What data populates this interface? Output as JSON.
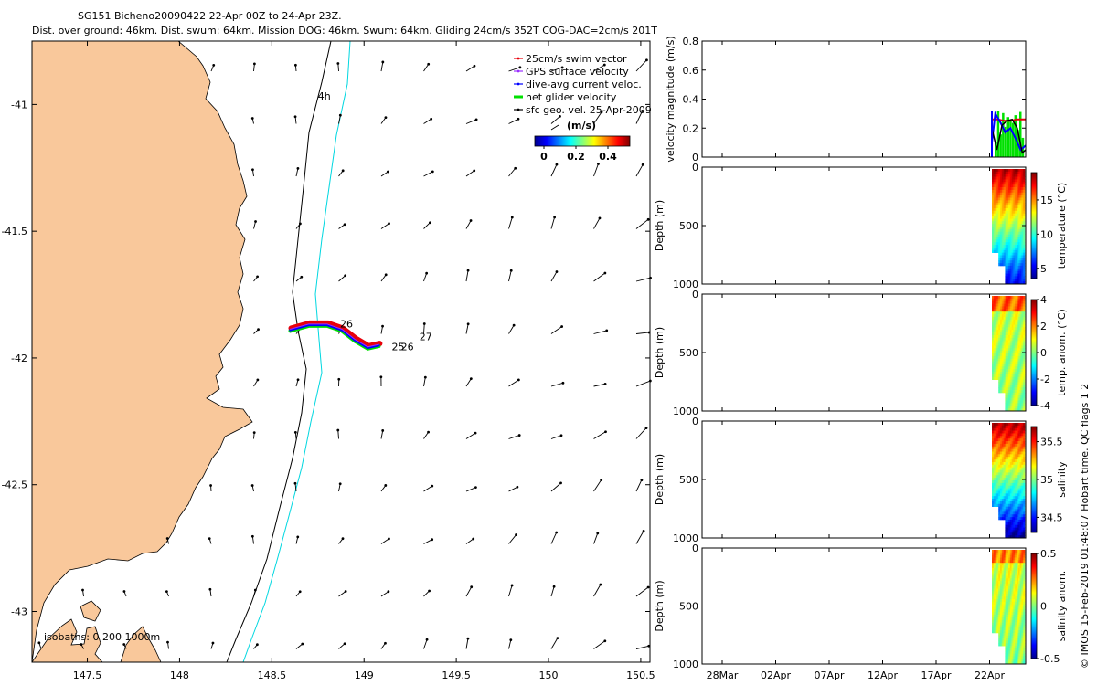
{
  "header": {
    "title_line1": "SG151 Bicheno20090422 22-Apr 00Z to 24-Apr 23Z.",
    "title_line2": "Dist. over ground: 46km. Dist. swum: 64km. Mission DOG: 46km. Swum: 64km. Gliding 24cm/s 352T COG-DAC=2cm/s 201T"
  },
  "credit": "© IMOS 15-Feb-2019 01:48:07 Hobart time. QC flags 1  2",
  "colors": {
    "land": "#f9c89b",
    "swim_vector": "#e8000b",
    "gps_velocity": "#9b30ff",
    "dive_avg_current": "#0000ff",
    "net_glider": "#00e000",
    "geo_velocity": "#000000",
    "isobath_200": "#000000",
    "isobath_1000": "#00d7e0"
  },
  "chart_data": [
    {
      "type": "map",
      "xlim": [
        147.2,
        150.55
      ],
      "ylim": [
        -43.2,
        -40.75
      ],
      "x_ticks": [
        "147.5",
        "148",
        "148.5",
        "149",
        "149.5",
        "150",
        "150.5"
      ],
      "x_tick_values": [
        147.5,
        148,
        148.5,
        149,
        149.5,
        150,
        150.5
      ],
      "y_ticks": [
        "-41",
        "-41.5",
        "-42",
        "-42.5",
        "-43"
      ],
      "y_tick_values": [
        -41,
        -41.5,
        -42,
        -42.5,
        -43
      ],
      "legend": [
        {
          "label": "25cm/s swim vector",
          "color": "#e8000b"
        },
        {
          "label": "GPS surface velocity",
          "color": "#9b30ff"
        },
        {
          "label": "dive-avg current veloc.",
          "color": "#0000ff"
        },
        {
          "label": "net glider velocity",
          "color": "#00e000"
        },
        {
          "label": "sfc geo. vel. 25-Apr-2009",
          "color": "#000000"
        }
      ],
      "colorbar_label": "(m/s)",
      "colorbar_ticks": [
        "0",
        "0.2",
        "0.4"
      ],
      "isobaths_label": "isobaths: 0  200  1000m",
      "day_labels": [
        {
          "text": "26",
          "lon": 148.87,
          "lat": -41.88
        },
        {
          "text": "25",
          "lon": 149.15,
          "lat": -41.97
        },
        {
          "text": "26",
          "lon": 149.2,
          "lat": -41.97
        },
        {
          "text": "27",
          "lon": 149.3,
          "lat": -41.93
        },
        {
          "text": "4h",
          "lon": 148.75,
          "lat": -40.98
        }
      ],
      "glider_track": [
        [
          148.6,
          -41.89
        ],
        [
          148.7,
          -41.87
        ],
        [
          148.8,
          -41.87
        ],
        [
          148.88,
          -41.89
        ],
        [
          148.95,
          -41.93
        ],
        [
          149.02,
          -41.96
        ],
        [
          149.08,
          -41.95
        ]
      ]
    },
    {
      "type": "line",
      "ylabel": "velocity magnitude (m/s)",
      "ylim": [
        0,
        0.8
      ],
      "y_ticks": [
        "0",
        "0.2",
        "0.4",
        "0.6",
        "0.8"
      ],
      "y_tick_values": [
        0,
        0.2,
        0.4,
        0.6,
        0.8
      ],
      "x_ticks": [
        "28Mar",
        "02Apr",
        "07Apr",
        "12Apr",
        "17Apr",
        "22Apr"
      ],
      "series": [
        {
          "color": "#e8000b",
          "x": [
            0,
            0.18,
            0.36,
            0.55,
            0.74,
            0.93,
            1
          ],
          "y": [
            0.26,
            0.26,
            0.25,
            0.25,
            0.26,
            0.26,
            0.26
          ]
        },
        {
          "color": "#0000ff",
          "x": [
            0,
            0.1,
            0.25,
            0.4,
            0.55,
            0.7,
            0.85,
            1
          ],
          "y": [
            0.1,
            0.3,
            0.24,
            0.17,
            0.2,
            0.13,
            0.05,
            0.08
          ]
        },
        {
          "color": "#000000",
          "x": [
            0,
            0.15,
            0.3,
            0.45,
            0.6,
            0.75,
            0.9,
            1
          ],
          "y": [
            0.2,
            0.05,
            0.22,
            0.25,
            0.26,
            0.2,
            0.03,
            0.05
          ]
        }
      ]
    },
    {
      "type": "heatmap",
      "ylabel": "Depth (m)",
      "colorbar_label": "temperature (°C)",
      "colorbar_ticks": [
        "5",
        "10",
        "15"
      ],
      "colorbar_tick_values": [
        5,
        10,
        15
      ],
      "clim": [
        3.5,
        19
      ],
      "y_ticks": [
        "0",
        "500",
        "1000"
      ]
    },
    {
      "type": "heatmap",
      "ylabel": "Depth (m)",
      "colorbar_label": "temp. anom. (°C)",
      "colorbar_ticks": [
        "-4",
        "-2",
        "0",
        "2",
        "4"
      ],
      "colorbar_tick_values": [
        -4,
        -2,
        0,
        2,
        4
      ],
      "clim": [
        -4,
        4
      ],
      "y_ticks": [
        "0",
        "500",
        "1000"
      ]
    },
    {
      "type": "heatmap",
      "ylabel": "Depth (m)",
      "colorbar_label": "salinity",
      "colorbar_ticks": [
        "34.5",
        "35",
        "35.5"
      ],
      "colorbar_tick_values": [
        34.5,
        35,
        35.5
      ],
      "clim": [
        34.3,
        35.7
      ],
      "y_ticks": [
        "0",
        "500",
        "1000"
      ]
    },
    {
      "type": "heatmap",
      "ylabel": "Depth (m)",
      "colorbar_label": "salinity anom.",
      "colorbar_ticks": [
        "-0.5",
        "0",
        "0.5"
      ],
      "colorbar_tick_values": [
        -0.5,
        0,
        0.5
      ],
      "clim": [
        -0.5,
        0.5
      ],
      "y_ticks": [
        "0",
        "500",
        "1000"
      ],
      "x_ticks": [
        "28Mar",
        "02Apr",
        "07Apr",
        "12Apr",
        "17Apr",
        "22Apr"
      ]
    }
  ]
}
